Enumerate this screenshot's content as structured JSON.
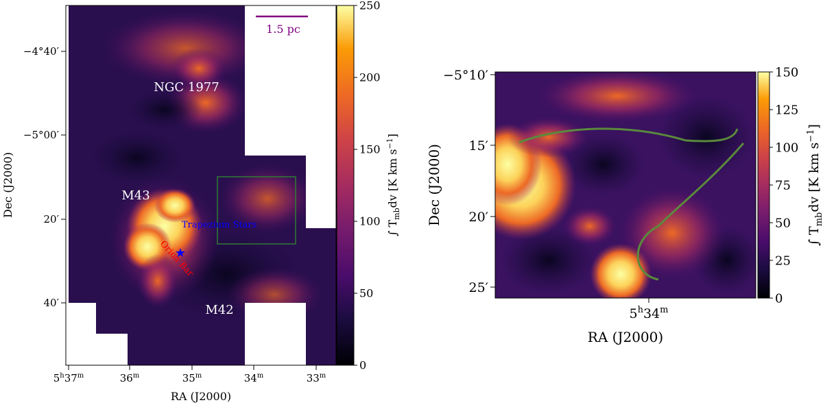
{
  "chart_data": [
    {
      "type": "heatmap",
      "title": "",
      "xlabel": "RA (J2000)",
      "ylabel": "Dec (J2000)",
      "x_ticks": [
        {
          "h": "5",
          "m": "37"
        },
        {
          "h": "",
          "m": "36"
        },
        {
          "h": "",
          "m": "35"
        },
        {
          "h": "",
          "m": "34"
        },
        {
          "h": "",
          "m": "33"
        }
      ],
      "y_ticks": [
        "−4°40′",
        "−5°00′",
        "20′",
        "40′"
      ],
      "colorbar": {
        "label": "∫ T",
        "label_sub": "mb",
        "label_rest": "dv [K km s",
        "label_exp": "−1",
        "label_close": "]",
        "ticks": [
          "0",
          "50",
          "100",
          "150",
          "200",
          "250"
        ],
        "range": [
          0,
          250
        ]
      },
      "annotations": {
        "scalebar": "1.5 pc",
        "ngc1977": "NGC 1977",
        "m43": "M43",
        "m42": "M42",
        "trapezium": "Trapezium Stars",
        "orion_bar": "Orion Bar"
      },
      "colors": {
        "scalebar": "#800080",
        "trapezium": "#0000ff",
        "orion_bar": "#ff0000",
        "region_box": "#2e7d32",
        "labels": "#ffffff"
      }
    },
    {
      "type": "heatmap",
      "title": "",
      "xlabel": "RA (J2000)",
      "ylabel": "Dec (J2000)",
      "x_ticks": [
        {
          "h": "5",
          "m": "34"
        }
      ],
      "y_ticks": [
        "−5°10′",
        "15′",
        "20′",
        "25′"
      ],
      "colorbar": {
        "label": "∫ T",
        "label_sub": "mb",
        "label_rest": "dv [K km s",
        "label_exp": "−1",
        "label_close": "]",
        "ticks": [
          "0",
          "25",
          "50",
          "75",
          "100",
          "125",
          "150"
        ],
        "range": [
          0,
          150
        ]
      },
      "colors": {
        "filament_curve": "#5a8a3c"
      }
    }
  ]
}
